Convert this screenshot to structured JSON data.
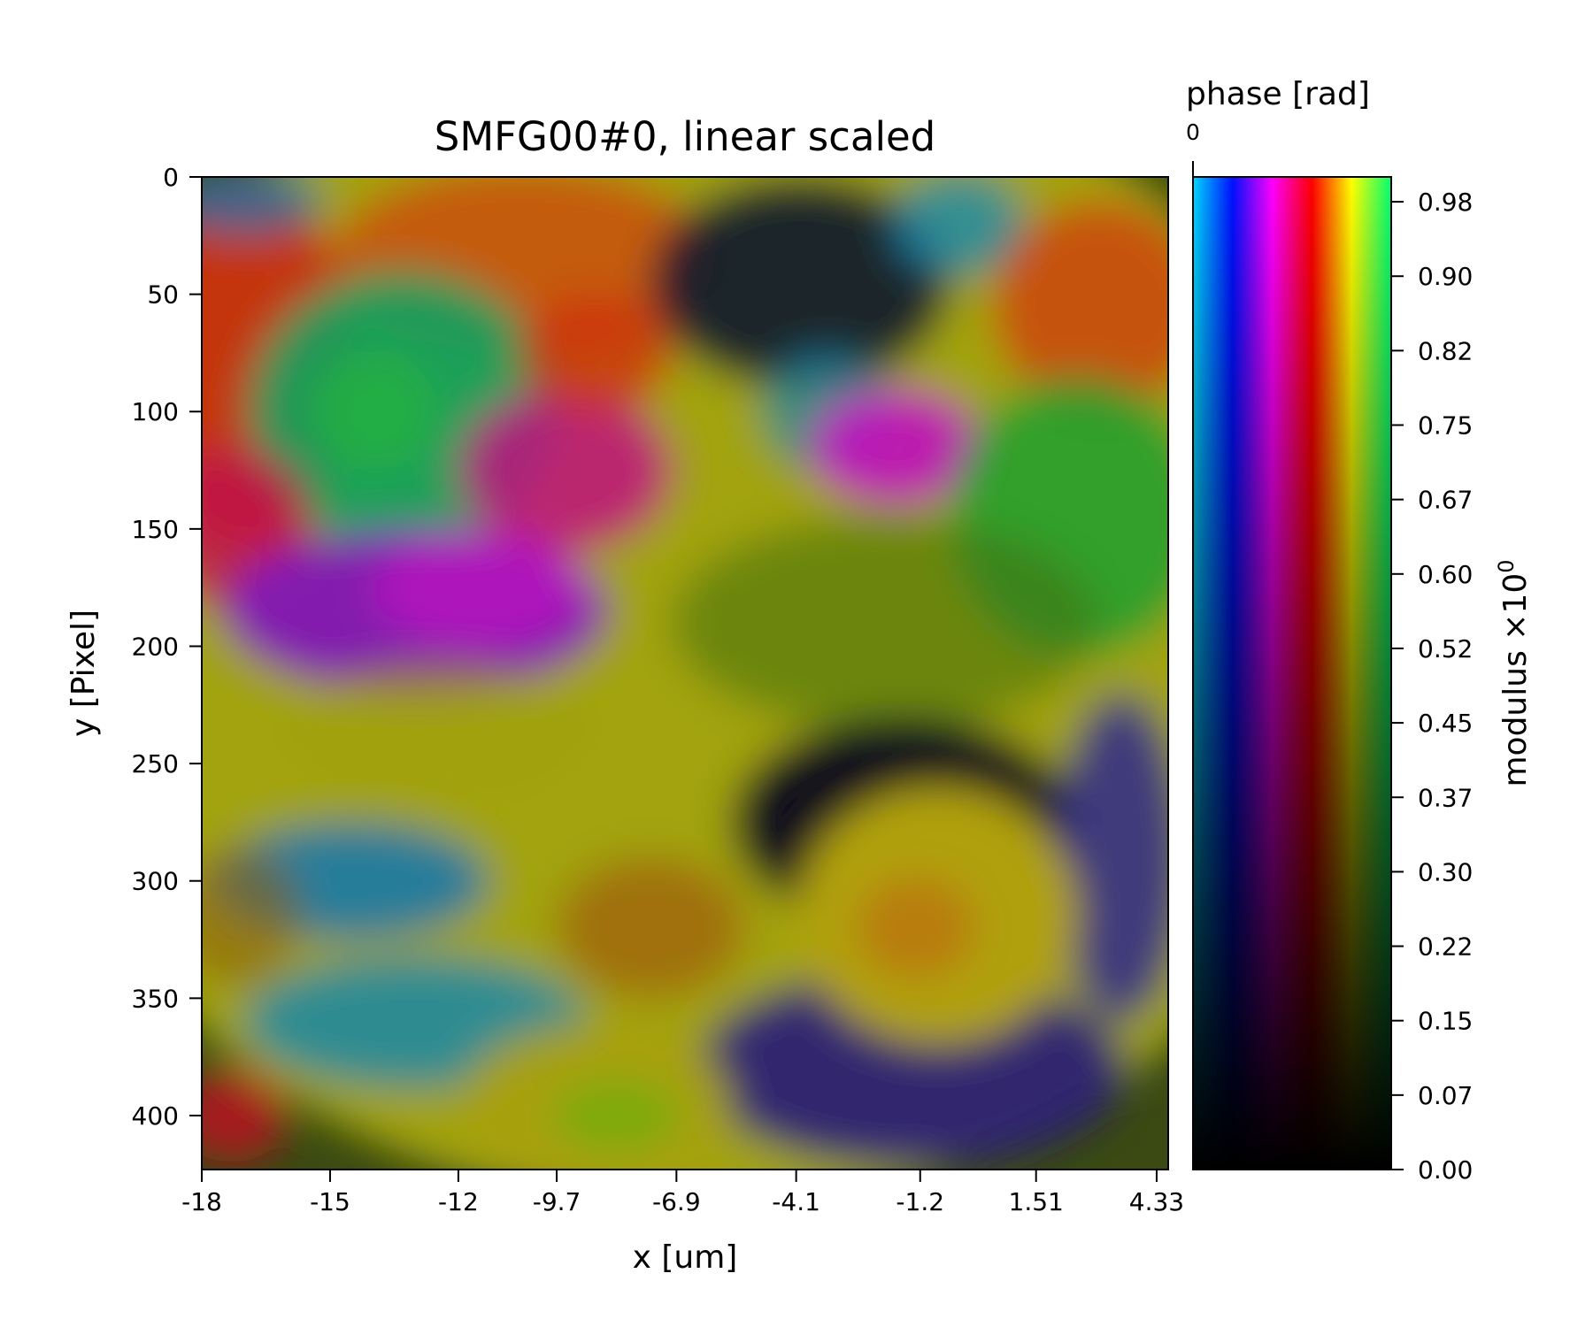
{
  "chart_data": {
    "type": "heatmap",
    "title": "SMFG00#0, linear scaled",
    "xlabel": "x [um]",
    "ylabel": "y [Pixel]",
    "xlim": [
      -18,
      4.6
    ],
    "ylim": [
      423,
      0
    ],
    "x_ticks": [
      "-18",
      "-15",
      "-12",
      "-9.7",
      "-6.9",
      "-4.1",
      "-1.2",
      "1.51",
      "4.33"
    ],
    "x_tick_values": [
      -18,
      -15,
      -12,
      -9.7,
      -6.9,
      -4.1,
      -1.2,
      1.51,
      4.33
    ],
    "y_ticks": [
      "0",
      "50",
      "100",
      "150",
      "200",
      "250",
      "300",
      "350",
      "400"
    ],
    "y_tick_values": [
      0,
      50,
      100,
      150,
      200,
      250,
      300,
      350,
      400
    ],
    "grid": false,
    "colorbar": {
      "type": "2d-colormap",
      "phase_label": "phase [rad]",
      "phase_tick": "0",
      "modulus_label_base": "modulus ×10",
      "modulus_label_exp": "0",
      "modulus_ticks": [
        "0.00",
        "0.07",
        "0.15",
        "0.22",
        "0.30",
        "0.37",
        "0.45",
        "0.52",
        "0.60",
        "0.67",
        "0.75",
        "0.82",
        "0.90",
        "0.98"
      ],
      "modulus_tick_values": [
        0.0,
        0.075,
        0.15,
        0.225,
        0.3,
        0.375,
        0.45,
        0.525,
        0.6,
        0.675,
        0.75,
        0.825,
        0.9,
        0.975
      ],
      "modulus_range": [
        0,
        1
      ],
      "phase_colors": [
        "#00d8ff",
        "#0010ff",
        "#ff00ff",
        "#ff0000",
        "#ffff00",
        "#00ff70"
      ]
    },
    "regions": [
      {
        "color": "#a8a810",
        "cx": -6.5,
        "cy": 190,
        "rx": 16,
        "ry": 250,
        "a": 0.95
      },
      {
        "color": "#cc1a10",
        "cx": -17.0,
        "cy": 80,
        "rx": 2.5,
        "ry": 80,
        "a": 0.8
      },
      {
        "color": "#cc4a10",
        "cx": -10.5,
        "cy": 35,
        "rx": 4.5,
        "ry": 40,
        "a": 0.8
      },
      {
        "color": "#10a060",
        "cx": -13.3,
        "cy": 100,
        "rx": 3.6,
        "ry": 60,
        "a": 0.9
      },
      {
        "color": "#20b040",
        "cx": -14.0,
        "cy": 100,
        "rx": 1.5,
        "ry": 25,
        "a": 0.8
      },
      {
        "color": "#c01080",
        "cx": -9.5,
        "cy": 125,
        "rx": 2.5,
        "ry": 35,
        "a": 0.85
      },
      {
        "color": "#d03010",
        "cx": -8.8,
        "cy": 75,
        "rx": 1.8,
        "ry": 25,
        "a": 0.8
      },
      {
        "color": "#c01050",
        "cx": -17.2,
        "cy": 150,
        "rx": 1.8,
        "ry": 35,
        "a": 0.8
      },
      {
        "color": "#8010c0",
        "cx": -13.0,
        "cy": 185,
        "rx": 4.5,
        "ry": 35,
        "a": 0.9
      },
      {
        "color": "#c010c0",
        "cx": -11.5,
        "cy": 175,
        "rx": 2.5,
        "ry": 25,
        "a": 0.7
      },
      {
        "color": "#101830",
        "cx": -4.0,
        "cy": 45,
        "rx": 3.5,
        "ry": 45,
        "a": 0.9
      },
      {
        "color": "#1888a8",
        "cx": -3.4,
        "cy": 100,
        "rx": 1.5,
        "ry": 25,
        "a": 0.7
      },
      {
        "color": "#1a8ab0",
        "cx": -0.3,
        "cy": 20,
        "rx": 1.5,
        "ry": 22,
        "a": 0.8
      },
      {
        "color": "#c010c0",
        "cx": -1.8,
        "cy": 115,
        "rx": 2.0,
        "ry": 25,
        "a": 0.9
      },
      {
        "color": "#d04010",
        "cx": 3.0,
        "cy": 55,
        "rx": 2.5,
        "ry": 45,
        "a": 0.8
      },
      {
        "color": "#20a030",
        "cx": 2.5,
        "cy": 145,
        "rx": 3.0,
        "ry": 60,
        "a": 0.85
      },
      {
        "color": "#407010",
        "cx": -2.0,
        "cy": 190,
        "rx": 5.0,
        "ry": 45,
        "a": 0.55
      },
      {
        "color": "#08081e",
        "cx": -1.6,
        "cy": 275,
        "rx": 4.0,
        "ry": 45,
        "a": 0.95
      },
      {
        "color": "#201080",
        "cx": -1.4,
        "cy": 380,
        "rx": 5.0,
        "ry": 42,
        "a": 0.85
      },
      {
        "color": "#2018a0",
        "cx": 3.5,
        "cy": 290,
        "rx": 1.5,
        "ry": 70,
        "a": 0.75
      },
      {
        "color": "#b0a010",
        "cx": -0.8,
        "cy": 315,
        "rx": 3.3,
        "ry": 55,
        "a": 1.0
      },
      {
        "color": "#c06010",
        "cx": -1.3,
        "cy": 320,
        "rx": 1.4,
        "ry": 22,
        "a": 0.55
      },
      {
        "color": "#a0a010",
        "cx": -12.5,
        "cy": 235,
        "rx": 3.5,
        "ry": 28,
        "a": 0.6
      },
      {
        "color": "#1878a8",
        "cx": -14.5,
        "cy": 300,
        "rx": 3.2,
        "ry": 25,
        "a": 0.9
      },
      {
        "color": "#1a88a8",
        "cx": -13.0,
        "cy": 360,
        "rx": 4.0,
        "ry": 28,
        "a": 0.85
      },
      {
        "color": "#a8a010",
        "cx": -8.8,
        "cy": 395,
        "rx": 3.2,
        "ry": 35,
        "a": 0.95
      },
      {
        "color": "#60b010",
        "cx": -8.3,
        "cy": 400,
        "rx": 1.5,
        "ry": 15,
        "a": 0.6
      },
      {
        "color": "#c01020",
        "cx": -17.3,
        "cy": 400,
        "rx": 1.3,
        "ry": 20,
        "a": 0.8
      },
      {
        "color": "#906010",
        "cx": -17.2,
        "cy": 315,
        "rx": 1.5,
        "ry": 30,
        "a": 0.6
      },
      {
        "color": "#a04010",
        "cx": -7.5,
        "cy": 320,
        "rx": 2.2,
        "ry": 30,
        "a": 0.5
      },
      {
        "color": "#1a78b8",
        "cx": -17.0,
        "cy": 10,
        "rx": 1.8,
        "ry": 15,
        "a": 0.7
      }
    ]
  }
}
